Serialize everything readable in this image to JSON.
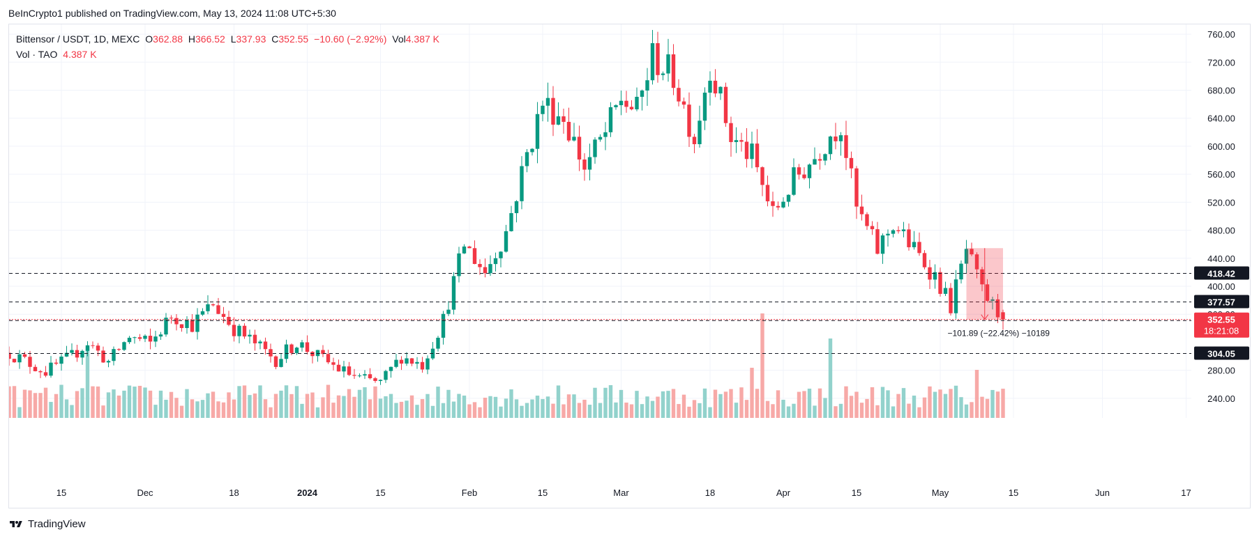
{
  "header": {
    "published": "BeInCrypto1 published on TradingView.com, May 13, 2024 11:08 UTC+5:30"
  },
  "legend": {
    "symbol": "Bittensor / USDT, 1D, MEXC",
    "o_label": "O",
    "o": "362.88",
    "h_label": "H",
    "h": "366.52",
    "l_label": "L",
    "l": "337.93",
    "c_label": "C",
    "c": "352.55",
    "change": "−10.60 (−2.92%)",
    "vol_label": "Vol",
    "vol": "4.387 K",
    "vol_line_label": "Vol · TAO",
    "vol_line_value": "4.387 K"
  },
  "footer": {
    "brand": "TradingView"
  },
  "colors": {
    "up": "#089981",
    "down": "#f23645",
    "vol_up": "#92d2cc",
    "vol_down": "#f7a9a7",
    "grid": "#f0f3fa"
  },
  "chart_data": {
    "type": "candlestick",
    "y_ticks": [
      "760.00",
      "720.00",
      "680.00",
      "640.00",
      "600.00",
      "560.00",
      "520.00",
      "480.00",
      "440.00",
      "400.00",
      "360.00",
      "280.00",
      "240.00"
    ],
    "y_range": [
      212,
      774
    ],
    "x_ticks": [
      {
        "label": "15",
        "date": "2023-11-15"
      },
      {
        "label": "Dec",
        "date": "2023-12-01"
      },
      {
        "label": "18",
        "date": "2023-12-18"
      },
      {
        "label": "2024",
        "date": "2024-01-01",
        "bold": true
      },
      {
        "label": "15",
        "date": "2024-01-15"
      },
      {
        "label": "Feb",
        "date": "2024-02-01"
      },
      {
        "label": "15",
        "date": "2024-02-15"
      },
      {
        "label": "Mar",
        "date": "2024-03-01"
      },
      {
        "label": "18",
        "date": "2024-03-18"
      },
      {
        "label": "Apr",
        "date": "2024-04-01"
      },
      {
        "label": "15",
        "date": "2024-04-15"
      },
      {
        "label": "May",
        "date": "2024-05-01"
      },
      {
        "label": "15",
        "date": "2024-05-15"
      },
      {
        "label": "Jun",
        "date": "2024-06-01"
      },
      {
        "label": "17",
        "date": "2024-06-17"
      }
    ],
    "x_range": [
      "2023-11-05",
      "2024-06-18"
    ],
    "levels": [
      {
        "value": 418.42,
        "label": "418.42"
      },
      {
        "value": 377.57,
        "label": "377.57"
      },
      {
        "value": 351.02,
        "label": "351.02"
      },
      {
        "value": 304.05,
        "label": "304.05"
      }
    ],
    "last_price": {
      "value": 352.55,
      "label": "352.55",
      "countdown": "18:21:08"
    },
    "measure": {
      "start_date": "2024-05-06",
      "end_date": "2024-05-13",
      "from": 454.44,
      "to": 352.55,
      "label": "−101.89 (−22.42%) −10189"
    },
    "anchors": [
      [
        "2023-11-05",
        305
      ],
      [
        "2023-11-12",
        278
      ],
      [
        "2023-11-17",
        300
      ],
      [
        "2023-11-20",
        320
      ],
      [
        "2023-11-24",
        292
      ],
      [
        "2023-11-28",
        328
      ],
      [
        "2023-12-02",
        318
      ],
      [
        "2023-12-06",
        358
      ],
      [
        "2023-12-10",
        345
      ],
      [
        "2023-12-14",
        375
      ],
      [
        "2023-12-18",
        340
      ],
      [
        "2023-12-22",
        318
      ],
      [
        "2023-12-26",
        295
      ],
      [
        "2023-12-30",
        320
      ],
      [
        "2024-01-03",
        300
      ],
      [
        "2024-01-07",
        282
      ],
      [
        "2024-01-11",
        268
      ],
      [
        "2024-01-15",
        262
      ],
      [
        "2024-01-19",
        300
      ],
      [
        "2024-01-23",
        288
      ],
      [
        "2024-01-27",
        352
      ],
      [
        "2024-01-31",
        460
      ],
      [
        "2024-02-04",
        420
      ],
      [
        "2024-02-08",
        478
      ],
      [
        "2024-02-12",
        588
      ],
      [
        "2024-02-15",
        662
      ],
      [
        "2024-02-19",
        642
      ],
      [
        "2024-02-23",
        570
      ],
      [
        "2024-02-27",
        618
      ],
      [
        "2024-03-01",
        668
      ],
      [
        "2024-03-04",
        650
      ],
      [
        "2024-03-07",
        728
      ],
      [
        "2024-03-11",
        700
      ],
      [
        "2024-03-15",
        612
      ],
      [
        "2024-03-18",
        718
      ],
      [
        "2024-03-22",
        612
      ],
      [
        "2024-03-26",
        585
      ],
      [
        "2024-03-30",
        502
      ],
      [
        "2024-04-03",
        552
      ],
      [
        "2024-04-07",
        585
      ],
      [
        "2024-04-10",
        618
      ],
      [
        "2024-04-12",
        632
      ],
      [
        "2024-04-15",
        510
      ],
      [
        "2024-04-19",
        452
      ],
      [
        "2024-04-22",
        490
      ],
      [
        "2024-04-26",
        452
      ],
      [
        "2024-04-30",
        415
      ],
      [
        "2024-05-03",
        372
      ],
      [
        "2024-05-06",
        452
      ],
      [
        "2024-05-09",
        392
      ],
      [
        "2024-05-13",
        352.55
      ]
    ],
    "volume_spikes": [
      {
        "date": "2024-03-28",
        "scale": 1.0,
        "up": false
      },
      {
        "date": "2024-04-10",
        "scale": 0.76,
        "up": true
      },
      {
        "date": "2023-11-20",
        "scale": 0.68,
        "up": true
      },
      {
        "date": "2024-03-26",
        "scale": 0.48,
        "up": false
      },
      {
        "date": "2024-05-08",
        "scale": 0.46,
        "up": false
      }
    ],
    "volume_ylim": [
      0,
      100
    ]
  }
}
